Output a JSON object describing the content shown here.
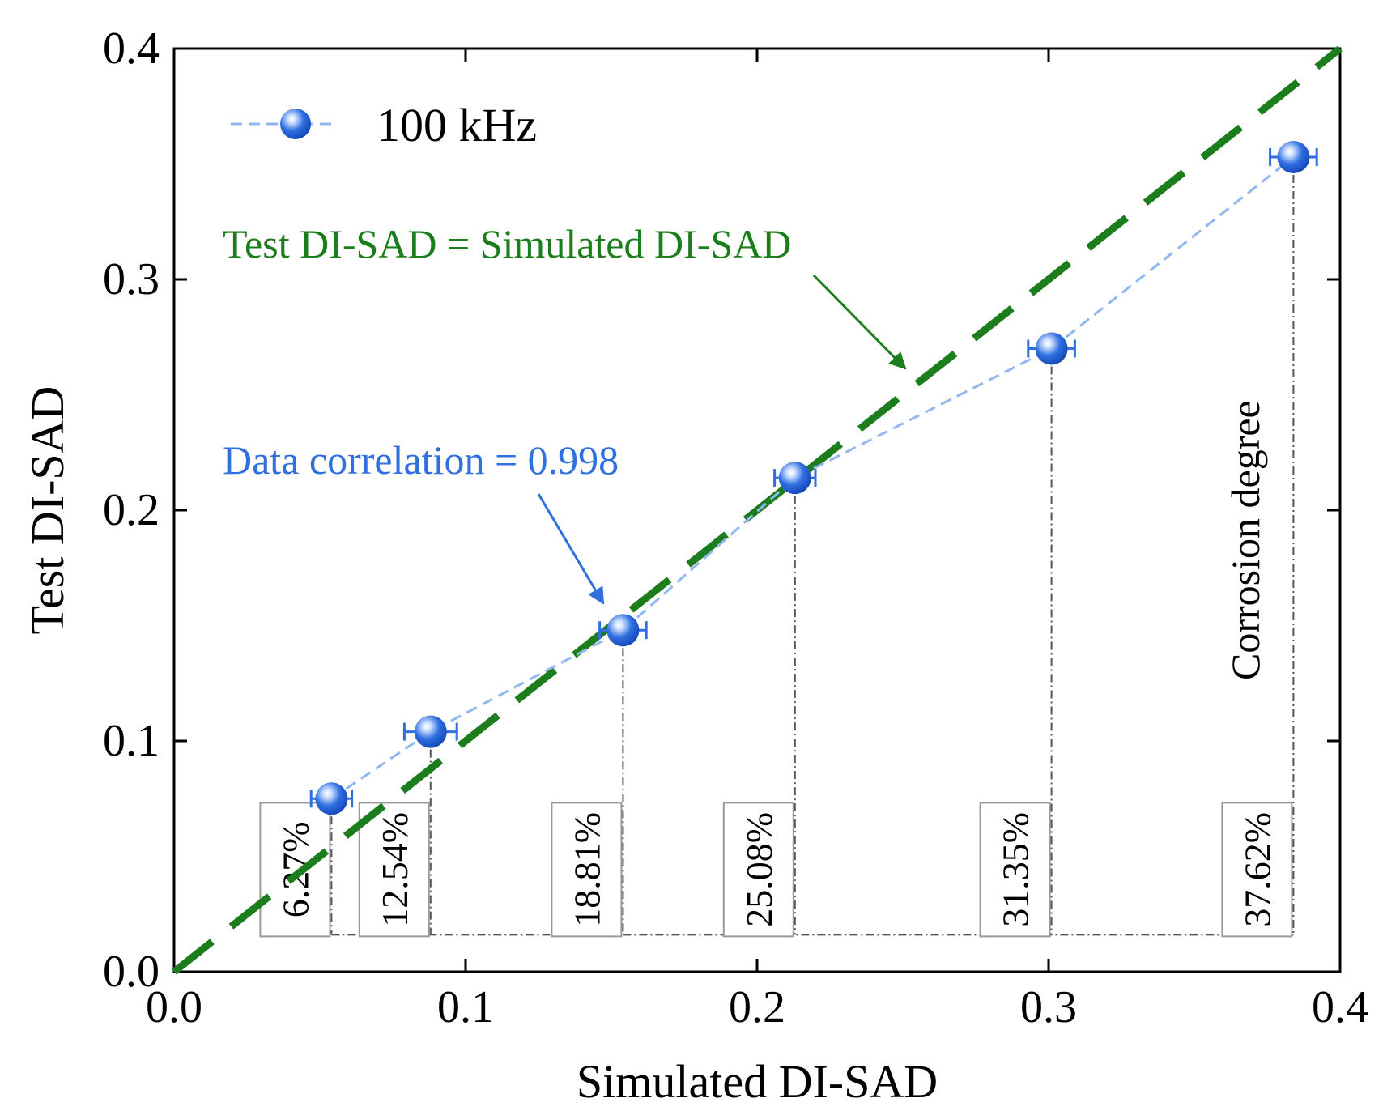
{
  "chart_data": {
    "type": "scatter",
    "xlabel": "Simulated DI-SAD",
    "ylabel": "Test DI-SAD",
    "xlim": [
      0.0,
      0.4
    ],
    "ylim": [
      0.0,
      0.4
    ],
    "xticks": [
      "0.0",
      "0.1",
      "0.2",
      "0.3",
      "0.4"
    ],
    "yticks": [
      "0.0",
      "0.1",
      "0.2",
      "0.3",
      "0.4"
    ],
    "legend": {
      "label": "100 kHz",
      "placement": "top-left"
    },
    "series": [
      {
        "name": "100 kHz",
        "x": [
          0.054,
          0.088,
          0.154,
          0.213,
          0.301,
          0.384
        ],
        "y": [
          0.075,
          0.104,
          0.148,
          0.214,
          0.27,
          0.353
        ],
        "x_error": [
          0.007,
          0.009,
          0.008,
          0.007,
          0.008,
          0.008
        ]
      }
    ],
    "reference_line": {
      "label": "Test DI-SAD = Simulated DI-SAD",
      "from": [
        0.0,
        0.0
      ],
      "to": [
        0.4,
        0.4
      ]
    },
    "correlation_label": "Data correlation = 0.998",
    "degree_title": "Corrosion degree",
    "degree_baseline_y": 0.016,
    "corrosion_degrees": [
      "6.27%",
      "12.54%",
      "18.81%",
      "25.08%",
      "31.35%",
      "37.62%"
    ],
    "colors": {
      "series": "#2f6fe0",
      "series_line": "#90b8f0",
      "reference": "#1b7d1b",
      "drop_line": "#555555"
    }
  }
}
